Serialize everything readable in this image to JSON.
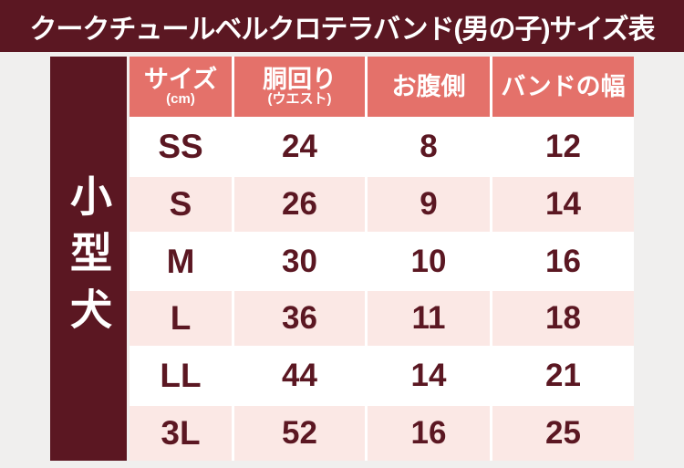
{
  "title": "クークチュールベルクロテラバンド(男の子)サイズ表",
  "category_label": "小型犬",
  "colors": {
    "maroon": "#5b1722",
    "salmon_header": "#e4716a",
    "row_pink": "#fbe8e5",
    "row_white": "#ffffff",
    "text": "#5b1722"
  },
  "table": {
    "headers": [
      {
        "main": "サイズ",
        "sub": "(cm)"
      },
      {
        "main": "胴回り",
        "sub": "(ウエスト)"
      },
      {
        "main": "お腹側",
        "sub": ""
      },
      {
        "main": "バンドの幅",
        "sub": ""
      }
    ],
    "rows": [
      {
        "size": "SS",
        "waist": "24",
        "belly": "8",
        "band": "12"
      },
      {
        "size": "S",
        "waist": "26",
        "belly": "9",
        "band": "14"
      },
      {
        "size": "M",
        "waist": "30",
        "belly": "10",
        "band": "16"
      },
      {
        "size": "L",
        "waist": "36",
        "belly": "11",
        "band": "18"
      },
      {
        "size": "LL",
        "waist": "44",
        "belly": "14",
        "band": "21"
      },
      {
        "size": "3L",
        "waist": "52",
        "belly": "16",
        "band": "25"
      }
    ]
  },
  "chart_data": {
    "type": "table",
    "title": "クークチュールベルクロテラバンド(男の子)サイズ表",
    "row_group": "小型犬",
    "columns": [
      "サイズ(cm)",
      "胴回り(ウエスト)",
      "お腹側",
      "バンドの幅"
    ],
    "rows": [
      [
        "SS",
        24,
        8,
        12
      ],
      [
        "S",
        26,
        9,
        14
      ],
      [
        "M",
        30,
        10,
        16
      ],
      [
        "L",
        36,
        11,
        18
      ],
      [
        "LL",
        44,
        14,
        21
      ],
      [
        "3L",
        52,
        16,
        25
      ]
    ]
  }
}
